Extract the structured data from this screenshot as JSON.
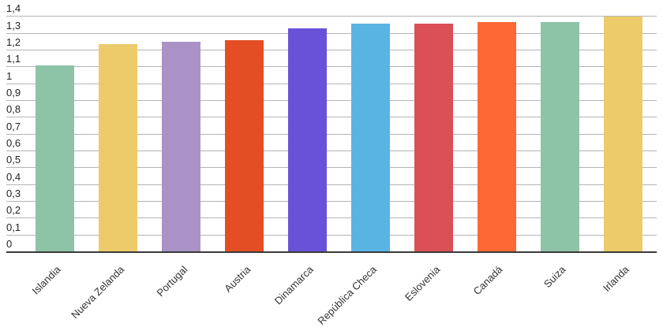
{
  "chart_data": {
    "type": "bar",
    "title": "",
    "xlabel": "",
    "ylabel": "",
    "ylim": [
      0,
      1.4
    ],
    "grid": true,
    "legend": "none",
    "yticks": [
      "0",
      "0,1",
      "0,2",
      "0,3",
      "0,4",
      "0,5",
      "0,6",
      "0,7",
      "0,8",
      "0,9",
      "1",
      "1,1",
      "1,2",
      "1,3",
      "1,4"
    ],
    "categories": [
      "Islandia",
      "Nueva Zelanda",
      "Portugal",
      "Austria",
      "Dinamarca",
      "República Checa",
      "Eslovenia",
      "Canadá",
      "Suiza",
      "Irlanda"
    ],
    "values": [
      1.11,
      1.24,
      1.25,
      1.26,
      1.33,
      1.36,
      1.36,
      1.37,
      1.37,
      1.4
    ],
    "colors": [
      "#8dc3a7",
      "#edcb6b",
      "#aa92c6",
      "#e34e25",
      "#6a52d8",
      "#5ab4e3",
      "#db4f56",
      "#fe6835",
      "#8dc3a7",
      "#edcb6b"
    ]
  }
}
